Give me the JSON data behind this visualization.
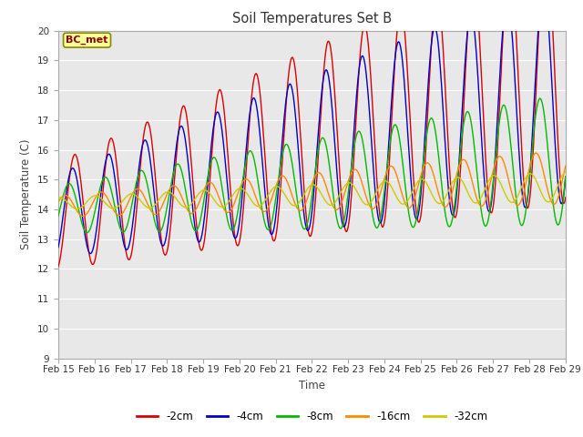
{
  "title": "Soil Temperatures Set B",
  "xlabel": "Time",
  "ylabel": "Soil Temperature (C)",
  "ylim": [
    9.0,
    20.0
  ],
  "yticks": [
    9.0,
    10.0,
    11.0,
    12.0,
    13.0,
    14.0,
    15.0,
    16.0,
    17.0,
    18.0,
    19.0,
    20.0
  ],
  "xtick_labels": [
    "Feb 15",
    "Feb 16",
    "Feb 17",
    "Feb 18",
    "Feb 19",
    "Feb 20",
    "Feb 21",
    "Feb 22",
    "Feb 23",
    "Feb 24",
    "Feb 25",
    "Feb 26",
    "Feb 27",
    "Feb 28",
    "Feb 29"
  ],
  "line_colors": [
    "#dd0000",
    "#0000cc",
    "#00bb00",
    "#ff8800",
    "#cccc00"
  ],
  "line_labels": [
    "-2cm",
    "-4cm",
    "-8cm",
    "-16cm",
    "-32cm"
  ],
  "line_width": 1.0,
  "fig_bg_color": "#ffffff",
  "plot_bg_color": "#e8e8e8",
  "grid_color": "#ffffff",
  "annotation_text": "BC_met",
  "annotation_bg": "#ffff99",
  "annotation_border": "#888800"
}
